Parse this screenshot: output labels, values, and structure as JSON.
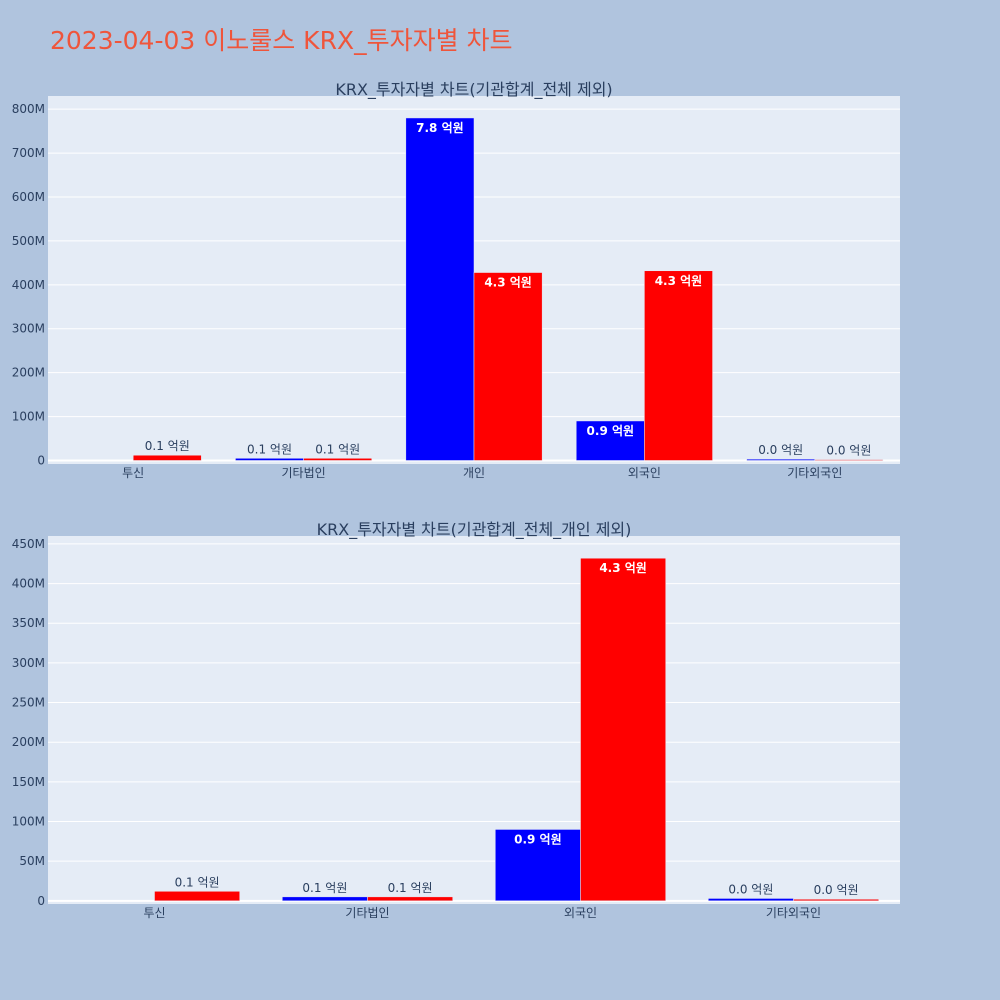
{
  "page": {
    "title": "2023-04-03 이노룰스 KRX_투자자별 차트"
  },
  "colors": {
    "buy": "#0000ff",
    "sell": "#ff0000",
    "plot_bg": "#e5ecf6",
    "page_bg": "#b0c4de"
  },
  "chart_data": [
    {
      "type": "bar",
      "title": "KRX_투자자별 차트(기관합계_전체 제외)",
      "categories": [
        "투신",
        "기타법인",
        "개인",
        "외국인",
        "기타외국인"
      ],
      "series": [
        {
          "color": "#0000ff",
          "values": [
            0,
            5000000,
            780000000,
            90000000,
            3000000
          ],
          "labels": [
            "",
            "0.1 억원",
            "7.8 억원",
            "0.9 억원",
            "0.0 억원"
          ]
        },
        {
          "color": "#ff0000",
          "values": [
            12000000,
            5000000,
            428000000,
            432000000,
            2000000
          ],
          "labels": [
            "0.1 억원",
            "0.1 억원",
            "4.3 억원",
            "4.3 억원",
            "0.0 억원"
          ]
        }
      ],
      "ylim": [
        -8000000,
        830000000
      ],
      "yticks": [
        0,
        100000000,
        200000000,
        300000000,
        400000000,
        500000000,
        600000000,
        700000000,
        800000000
      ],
      "ytick_labels": [
        "0",
        "100M",
        "200M",
        "300M",
        "400M",
        "500M",
        "600M",
        "700M",
        "800M"
      ],
      "grid": true
    },
    {
      "type": "bar",
      "title": "KRX_투자자별 차트(기관합계_전체_개인 제외)",
      "categories": [
        "투신",
        "기타법인",
        "외국인",
        "기타외국인"
      ],
      "series": [
        {
          "color": "#0000ff",
          "values": [
            0,
            5000000,
            90000000,
            3000000
          ],
          "labels": [
            "",
            "0.1 억원",
            "0.9 억원",
            "0.0 억원"
          ]
        },
        {
          "color": "#ff0000",
          "values": [
            12000000,
            5000000,
            432000000,
            2000000
          ],
          "labels": [
            "0.1 억원",
            "0.1 억원",
            "4.3 억원",
            "0.0 억원"
          ]
        }
      ],
      "ylim": [
        -4000000,
        460000000
      ],
      "yticks": [
        0,
        50000000,
        100000000,
        150000000,
        200000000,
        250000000,
        300000000,
        350000000,
        400000000,
        450000000
      ],
      "ytick_labels": [
        "0",
        "50M",
        "100M",
        "150M",
        "200M",
        "250M",
        "300M",
        "350M",
        "400M",
        "450M"
      ],
      "grid": true
    }
  ]
}
